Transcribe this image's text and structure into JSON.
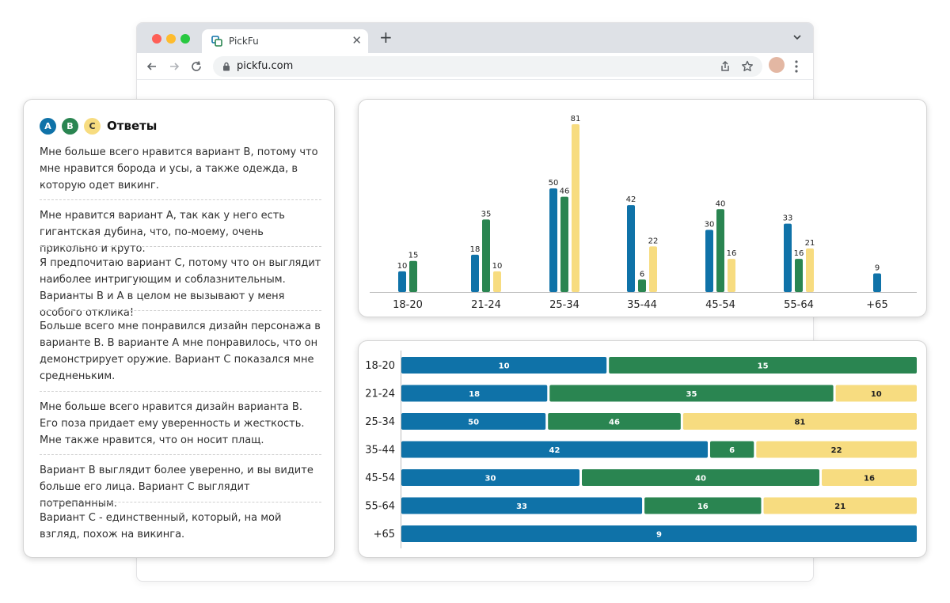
{
  "browser": {
    "tab_title": "PickFu",
    "url": "pickfu.com"
  },
  "icons": {
    "tab_favicon": "pickfu-favicon-icon",
    "close": "close-icon",
    "new_tab": "plus-icon",
    "tabs_menu": "chevron-down-icon",
    "back": "arrow-left-icon",
    "forward": "arrow-right-icon",
    "reload": "reload-icon",
    "lock": "lock-icon",
    "share": "share-icon",
    "bookmark": "star-icon",
    "menu": "kebab-menu-icon"
  },
  "colors": {
    "option_a": "#0f72a8",
    "option_b": "#2a8551",
    "option_c": "#f7dc80"
  },
  "answers": {
    "badges": [
      "A",
      "B",
      "C"
    ],
    "title": "Ответы",
    "items": [
      "Мне больше всего нравится вариант B, потому что мне нравится борода и усы, а также одежда, в которую одет викинг.",
      "Мне нравится вариант А, так как у него есть гигантская дубина, что, по-моему, очень прикольно и круто.",
      "Я предпочитаю вариант С, потому что он выглядит наиболее интригующим и соблазнительным. Варианты В и А в целом не вызывают у меня особого отклика!",
      "Больше всего мне понравился дизайн персонажа в варианте B. В варианте A мне понравилось, что он демонстрирует оружие. Вариант C показался мне средненьким.",
      "Мне больше всего нравится дизайн варианта B. Его поза придает ему уверенность и жесткость. Мне также нравится, что он носит плащ.",
      "Вариант B выглядит более уверенно, и вы видите больше его лица. Вариант C выглядит потрепанным.",
      "Вариант C - единственный, который, на мой взгляд, похож на викинга."
    ]
  },
  "chart_data": [
    {
      "type": "bar",
      "categories": [
        "18-20",
        "21-24",
        "25-34",
        "35-44",
        "45-54",
        "55-64",
        "+65"
      ],
      "series": [
        {
          "values": [
            10,
            18,
            50,
            42,
            30,
            33,
            9
          ],
          "color": "#0f72a8"
        },
        {
          "values": [
            15,
            35,
            46,
            6,
            40,
            16,
            null
          ],
          "color": "#2a8551"
        },
        {
          "values": [
            null,
            10,
            81,
            22,
            16,
            21,
            null
          ],
          "color": "#f7dc80"
        }
      ],
      "ylim": [
        0,
        81
      ],
      "grid": false,
      "legend": "none"
    },
    {
      "type": "bar",
      "orientation": "horizontal-stacked",
      "categories": [
        "18-20",
        "21-24",
        "25-34",
        "35-44",
        "45-54",
        "55-64",
        "+65"
      ],
      "series": [
        {
          "values": [
            10,
            18,
            50,
            42,
            30,
            33,
            9
          ],
          "color": "#0f72a8"
        },
        {
          "values": [
            15,
            35,
            46,
            6,
            40,
            16,
            null
          ],
          "color": "#2a8551"
        },
        {
          "values": [
            null,
            10,
            81,
            22,
            16,
            21,
            null
          ],
          "color": "#f7dc80"
        }
      ],
      "grid": false,
      "legend": "none"
    }
  ]
}
